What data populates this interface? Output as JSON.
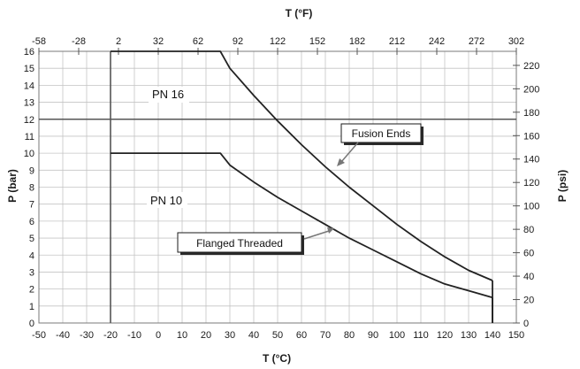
{
  "chart_data": {
    "type": "line",
    "x_bottom": {
      "label": "T (°C)",
      "ticks": [
        "-50",
        "-40",
        "-30",
        "-20",
        "-10",
        "0",
        "10",
        "20",
        "30",
        "40",
        "50",
        "60",
        "70",
        "80",
        "90",
        "100",
        "110",
        "120",
        "130",
        "140",
        "150"
      ],
      "range": [
        -50,
        150
      ]
    },
    "x_top": {
      "label": "T (°F)",
      "ticks": [
        "-58",
        "-28",
        "2",
        "32",
        "62",
        "92",
        "122",
        "152",
        "182",
        "212",
        "242",
        "272",
        "302"
      ],
      "range": [
        -58,
        302
      ]
    },
    "y_left": {
      "label": "P (bar)",
      "ticks": [
        "0",
        "1",
        "2",
        "3",
        "4",
        "5",
        "6",
        "7",
        "8",
        "9",
        "10",
        "11",
        "12",
        "13",
        "14",
        "15",
        "16"
      ],
      "range": [
        0,
        16
      ]
    },
    "y_right": {
      "label": "P (psi)",
      "ticks": [
        "0",
        "20",
        "40",
        "60",
        "80",
        "100",
        "120",
        "140",
        "160",
        "180",
        "200",
        "220"
      ],
      "range": [
        0,
        232
      ]
    },
    "series": [
      {
        "name": "Fusion Ends",
        "x": [
          -20,
          26,
          30,
          40,
          50,
          60,
          70,
          80,
          90,
          100,
          110,
          120,
          130,
          140
        ],
        "y": [
          16,
          16,
          15.0,
          13.4,
          11.9,
          10.5,
          9.2,
          8.0,
          6.9,
          5.8,
          4.8,
          3.9,
          3.1,
          2.5
        ]
      },
      {
        "name": "Flanged Threaded",
        "x": [
          -20,
          26,
          30,
          40,
          50,
          60,
          70,
          80,
          90,
          100,
          110,
          120,
          130,
          140
        ],
        "y": [
          10,
          10,
          9.3,
          8.3,
          7.4,
          6.6,
          5.8,
          5.0,
          4.3,
          3.6,
          2.9,
          2.3,
          1.9,
          1.5
        ]
      }
    ],
    "reference_lines": {
      "vertical_x": -20,
      "horizontal_y": 12,
      "end_x": 140
    },
    "region_labels": [
      "PN 16",
      "PN 10"
    ],
    "callouts": [
      "Fusion Ends",
      "Flanged Threaded"
    ],
    "grid": true
  }
}
